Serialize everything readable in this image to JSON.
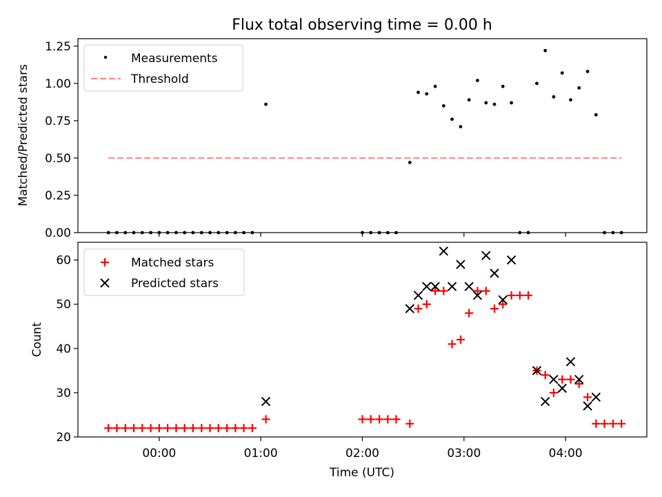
{
  "chart_data": [
    {
      "type": "scatter",
      "title": "Flux total observing time = 0.00 h",
      "xlabel": "",
      "ylabel": "Matched/Predicted stars",
      "ylim": [
        0,
        1.3
      ],
      "yticks": [
        "0.00",
        "0.25",
        "0.50",
        "0.75",
        "1.00",
        "1.25"
      ],
      "ytick_values": [
        0,
        0.25,
        0.5,
        0.75,
        1.0,
        1.25
      ],
      "legend_position": "top-left",
      "series": [
        {
          "name": "Measurements",
          "marker": "dot",
          "color": "#000000",
          "x": [
            -0.5,
            -0.417,
            -0.333,
            -0.25,
            -0.167,
            -0.083,
            0.0,
            0.083,
            0.167,
            0.25,
            0.333,
            0.417,
            0.5,
            0.583,
            0.667,
            0.75,
            0.833,
            0.917,
            1.05,
            2.0,
            2.083,
            2.167,
            2.25,
            2.333,
            2.467,
            2.55,
            2.633,
            2.717,
            2.8,
            2.883,
            2.967,
            3.05,
            3.133,
            3.217,
            3.3,
            3.383,
            3.467,
            3.55,
            3.633,
            3.717,
            3.8,
            3.883,
            3.967,
            4.05,
            4.133,
            4.217,
            4.3,
            4.383,
            4.467,
            4.55
          ],
          "y": [
            0,
            0,
            0,
            0,
            0,
            0,
            0,
            0,
            0,
            0,
            0,
            0,
            0,
            0,
            0,
            0,
            0,
            0,
            0.86,
            0,
            0,
            0,
            0,
            0,
            0.47,
            0.94,
            0.93,
            0.98,
            0.85,
            0.76,
            0.71,
            0.89,
            1.02,
            0.87,
            0.86,
            0.98,
            0.87,
            0,
            0,
            1.0,
            1.22,
            0.91,
            1.07,
            0.89,
            0.97,
            1.08,
            0.79,
            0,
            0,
            0
          ]
        },
        {
          "name": "Threshold",
          "marker": "dashed-line",
          "color": "#ff8080",
          "x": [
            -0.5,
            4.55
          ],
          "y": [
            0.5,
            0.5
          ]
        }
      ]
    },
    {
      "type": "scatter",
      "title": "",
      "xlabel": "Time (UTC)",
      "ylabel": "Count",
      "ylim": [
        20,
        64
      ],
      "yticks": [
        "20",
        "30",
        "40",
        "50",
        "60"
      ],
      "ytick_values": [
        20,
        30,
        40,
        50,
        60
      ],
      "xticks": [
        "00:00",
        "01:00",
        "02:00",
        "03:00",
        "04:00"
      ],
      "xtick_values": [
        0,
        1,
        2,
        3,
        4
      ],
      "xlim": [
        -0.8,
        4.8
      ],
      "legend_position": "top-left",
      "series": [
        {
          "name": "Matched stars",
          "marker": "plus",
          "color": "#ff0000",
          "x": [
            -0.5,
            -0.417,
            -0.333,
            -0.25,
            -0.167,
            -0.083,
            0.0,
            0.083,
            0.167,
            0.25,
            0.333,
            0.417,
            0.5,
            0.583,
            0.667,
            0.75,
            0.833,
            0.917,
            1.05,
            2.0,
            2.083,
            2.167,
            2.25,
            2.333,
            2.467,
            2.55,
            2.633,
            2.717,
            2.8,
            2.883,
            2.967,
            3.05,
            3.133,
            3.217,
            3.3,
            3.383,
            3.467,
            3.55,
            3.633,
            3.717,
            3.8,
            3.883,
            3.967,
            4.05,
            4.133,
            4.217,
            4.3,
            4.383,
            4.467,
            4.55
          ],
          "y": [
            22,
            22,
            22,
            22,
            22,
            22,
            22,
            22,
            22,
            22,
            22,
            22,
            22,
            22,
            22,
            22,
            22,
            22,
            24,
            24,
            24,
            24,
            24,
            24,
            23,
            49,
            50,
            53,
            53,
            41,
            42,
            48,
            53,
            53,
            49,
            50,
            52,
            52,
            52,
            35,
            34,
            30,
            33,
            33,
            32,
            29,
            23,
            23,
            23,
            23
          ]
        },
        {
          "name": "Predicted stars",
          "marker": "x",
          "color": "#000000",
          "x": [
            1.05,
            2.467,
            2.55,
            2.633,
            2.717,
            2.8,
            2.883,
            2.967,
            3.05,
            3.133,
            3.217,
            3.3,
            3.383,
            3.467,
            3.717,
            3.8,
            3.883,
            3.967,
            4.05,
            4.133,
            4.217,
            4.3
          ],
          "y": [
            28,
            49,
            52,
            54,
            54,
            62,
            54,
            59,
            54,
            52,
            61,
            57,
            51,
            60,
            35,
            28,
            33,
            31,
            37,
            33,
            27,
            29
          ]
        }
      ]
    }
  ]
}
